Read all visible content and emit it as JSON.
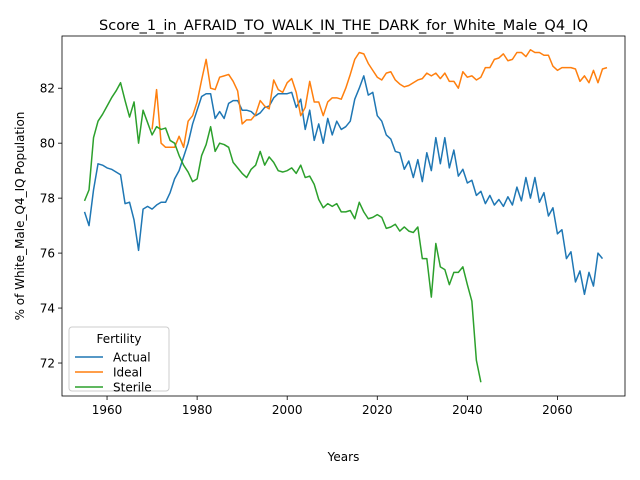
{
  "chart_data": {
    "type": "line",
    "title": "Score_1_in_AFRAID_TO_WALK_IN_THE_DARK_for_White_Male_Q4_IQ",
    "xlabel": "Years",
    "ylabel": "% of White_Male_Q4_IQ Population",
    "xlim": [
      1950,
      2075
    ],
    "ylim": [
      70.8,
      83.9
    ],
    "xticks": [
      1960,
      1980,
      2000,
      2020,
      2040,
      2060
    ],
    "yticks": [
      72,
      74,
      76,
      78,
      80,
      82
    ],
    "grid": false,
    "legend": {
      "title": "Fertility",
      "location": "lower-left"
    },
    "series": [
      {
        "name": "Actual",
        "color": "#1f77b4",
        "points": [
          [
            1955,
            77.5
          ],
          [
            1956,
            77.0
          ],
          [
            1957,
            78.3
          ],
          [
            1958,
            79.25
          ],
          [
            1959,
            79.2
          ],
          [
            1960,
            79.1
          ],
          [
            1961,
            79.05
          ],
          [
            1962,
            78.95
          ],
          [
            1963,
            78.85
          ],
          [
            1964,
            77.8
          ],
          [
            1965,
            77.85
          ],
          [
            1966,
            77.2
          ],
          [
            1967,
            76.1
          ],
          [
            1968,
            77.6
          ],
          [
            1969,
            77.7
          ],
          [
            1970,
            77.6
          ],
          [
            1971,
            77.75
          ],
          [
            1972,
            77.85
          ],
          [
            1973,
            77.85
          ],
          [
            1974,
            78.2
          ],
          [
            1975,
            78.7
          ],
          [
            1976,
            79.0
          ],
          [
            1977,
            79.5
          ],
          [
            1978,
            80.0
          ],
          [
            1979,
            80.7
          ],
          [
            1980,
            81.2
          ],
          [
            1981,
            81.7
          ],
          [
            1982,
            81.8
          ],
          [
            1983,
            81.8
          ],
          [
            1984,
            80.9
          ],
          [
            1985,
            81.15
          ],
          [
            1986,
            80.9
          ],
          [
            1987,
            81.45
          ],
          [
            1988,
            81.55
          ],
          [
            1989,
            81.55
          ],
          [
            1990,
            81.2
          ],
          [
            1991,
            81.2
          ],
          [
            1992,
            81.15
          ],
          [
            1993,
            81.0
          ],
          [
            1994,
            81.1
          ],
          [
            1995,
            81.3
          ],
          [
            1996,
            81.35
          ],
          [
            1997,
            81.65
          ],
          [
            1998,
            81.8
          ],
          [
            1999,
            81.8
          ],
          [
            2000,
            81.8
          ],
          [
            2001,
            81.85
          ],
          [
            2002,
            81.3
          ],
          [
            2003,
            81.6
          ],
          [
            2004,
            80.5
          ],
          [
            2005,
            81.2
          ],
          [
            2006,
            80.1
          ],
          [
            2007,
            80.7
          ],
          [
            2008,
            80.0
          ],
          [
            2009,
            80.9
          ],
          [
            2010,
            80.3
          ],
          [
            2011,
            80.8
          ],
          [
            2012,
            80.5
          ],
          [
            2013,
            80.6
          ],
          [
            2014,
            80.8
          ],
          [
            2015,
            81.6
          ],
          [
            2016,
            82.0
          ],
          [
            2017,
            82.45
          ],
          [
            2018,
            81.75
          ],
          [
            2019,
            81.85
          ],
          [
            2020,
            81.0
          ],
          [
            2021,
            80.8
          ],
          [
            2022,
            80.3
          ],
          [
            2023,
            80.15
          ],
          [
            2024,
            79.7
          ],
          [
            2025,
            79.65
          ],
          [
            2026,
            79.05
          ],
          [
            2027,
            79.35
          ],
          [
            2028,
            78.75
          ],
          [
            2029,
            79.4
          ],
          [
            2030,
            78.6
          ],
          [
            2031,
            79.65
          ],
          [
            2032,
            79.0
          ],
          [
            2033,
            80.2
          ],
          [
            2034,
            79.25
          ],
          [
            2035,
            80.2
          ],
          [
            2036,
            79.1
          ],
          [
            2037,
            79.75
          ],
          [
            2038,
            78.8
          ],
          [
            2039,
            79.05
          ],
          [
            2040,
            78.55
          ],
          [
            2041,
            78.65
          ],
          [
            2042,
            78.1
          ],
          [
            2043,
            78.25
          ],
          [
            2044,
            77.8
          ],
          [
            2045,
            78.1
          ],
          [
            2046,
            77.75
          ],
          [
            2047,
            77.95
          ],
          [
            2048,
            77.7
          ],
          [
            2049,
            78.05
          ],
          [
            2050,
            77.75
          ],
          [
            2051,
            78.4
          ],
          [
            2052,
            77.9
          ],
          [
            2053,
            78.75
          ],
          [
            2054,
            78.0
          ],
          [
            2055,
            78.75
          ],
          [
            2056,
            77.85
          ],
          [
            2057,
            78.2
          ],
          [
            2058,
            77.35
          ],
          [
            2059,
            77.65
          ],
          [
            2060,
            76.7
          ],
          [
            2061,
            76.85
          ],
          [
            2062,
            75.8
          ],
          [
            2063,
            76.05
          ],
          [
            2064,
            74.95
          ],
          [
            2065,
            75.35
          ],
          [
            2066,
            74.5
          ],
          [
            2067,
            75.3
          ],
          [
            2068,
            74.8
          ],
          [
            2069,
            76.0
          ],
          [
            2070,
            75.8
          ]
        ]
      },
      {
        "name": "Ideal",
        "color": "#ff7f0e",
        "points": [
          [
            1970,
            80.5
          ],
          [
            1971,
            81.95
          ],
          [
            1972,
            80.0
          ],
          [
            1973,
            79.85
          ],
          [
            1974,
            79.85
          ],
          [
            1975,
            79.85
          ],
          [
            1976,
            80.25
          ],
          [
            1977,
            79.85
          ],
          [
            1978,
            80.8
          ],
          [
            1979,
            81.0
          ],
          [
            1980,
            81.5
          ],
          [
            1981,
            82.3
          ],
          [
            1982,
            83.05
          ],
          [
            1983,
            82.0
          ],
          [
            1984,
            81.95
          ],
          [
            1985,
            82.4
          ],
          [
            1986,
            82.45
          ],
          [
            1987,
            82.5
          ],
          [
            1988,
            82.25
          ],
          [
            1989,
            81.9
          ],
          [
            1990,
            80.7
          ],
          [
            1991,
            80.85
          ],
          [
            1992,
            80.85
          ],
          [
            1993,
            81.05
          ],
          [
            1994,
            81.55
          ],
          [
            1995,
            81.35
          ],
          [
            1996,
            81.25
          ],
          [
            1997,
            82.3
          ],
          [
            1998,
            81.95
          ],
          [
            1999,
            81.85
          ],
          [
            2000,
            82.2
          ],
          [
            2001,
            82.35
          ],
          [
            2002,
            81.85
          ],
          [
            2003,
            81.0
          ],
          [
            2004,
            81.3
          ],
          [
            2005,
            82.25
          ],
          [
            2006,
            81.5
          ],
          [
            2007,
            81.5
          ],
          [
            2008,
            81.0
          ],
          [
            2009,
            81.5
          ],
          [
            2010,
            81.65
          ],
          [
            2011,
            81.65
          ],
          [
            2012,
            81.6
          ],
          [
            2013,
            82.0
          ],
          [
            2014,
            82.5
          ],
          [
            2015,
            83.05
          ],
          [
            2016,
            83.3
          ],
          [
            2017,
            83.25
          ],
          [
            2018,
            82.9
          ],
          [
            2019,
            82.65
          ],
          [
            2020,
            82.4
          ],
          [
            2021,
            82.3
          ],
          [
            2022,
            82.55
          ],
          [
            2023,
            82.6
          ],
          [
            2024,
            82.3
          ],
          [
            2025,
            82.15
          ],
          [
            2026,
            82.05
          ],
          [
            2027,
            82.1
          ],
          [
            2028,
            82.2
          ],
          [
            2029,
            82.3
          ],
          [
            2030,
            82.35
          ],
          [
            2031,
            82.55
          ],
          [
            2032,
            82.45
          ],
          [
            2033,
            82.55
          ],
          [
            2034,
            82.35
          ],
          [
            2035,
            82.55
          ],
          [
            2036,
            82.25
          ],
          [
            2037,
            82.25
          ],
          [
            2038,
            82.0
          ],
          [
            2039,
            82.6
          ],
          [
            2040,
            82.4
          ],
          [
            2041,
            82.45
          ],
          [
            2042,
            82.3
          ],
          [
            2043,
            82.4
          ],
          [
            2044,
            82.75
          ],
          [
            2045,
            82.75
          ],
          [
            2046,
            83.05
          ],
          [
            2047,
            83.1
          ],
          [
            2048,
            83.25
          ],
          [
            2049,
            83.0
          ],
          [
            2050,
            83.05
          ],
          [
            2051,
            83.3
          ],
          [
            2052,
            83.3
          ],
          [
            2053,
            83.15
          ],
          [
            2054,
            83.4
          ],
          [
            2055,
            83.3
          ],
          [
            2056,
            83.3
          ],
          [
            2057,
            83.2
          ],
          [
            2058,
            83.2
          ],
          [
            2059,
            82.8
          ],
          [
            2060,
            82.65
          ],
          [
            2061,
            82.75
          ],
          [
            2062,
            82.75
          ],
          [
            2063,
            82.75
          ],
          [
            2064,
            82.7
          ],
          [
            2065,
            82.25
          ],
          [
            2066,
            82.45
          ],
          [
            2067,
            82.2
          ],
          [
            2068,
            82.65
          ],
          [
            2069,
            82.2
          ],
          [
            2070,
            82.7
          ],
          [
            2071,
            82.75
          ]
        ]
      },
      {
        "name": "Sterile",
        "color": "#2ca02c",
        "points": [
          [
            1955,
            77.9
          ],
          [
            1956,
            78.3
          ],
          [
            1957,
            80.2
          ],
          [
            1958,
            80.8
          ],
          [
            1959,
            81.05
          ],
          [
            1960,
            81.35
          ],
          [
            1961,
            81.65
          ],
          [
            1962,
            81.9
          ],
          [
            1963,
            82.2
          ],
          [
            1964,
            81.55
          ],
          [
            1965,
            80.95
          ],
          [
            1966,
            81.5
          ],
          [
            1967,
            80.0
          ],
          [
            1968,
            81.2
          ],
          [
            1969,
            80.75
          ],
          [
            1970,
            80.3
          ],
          [
            1971,
            80.6
          ],
          [
            1972,
            80.5
          ],
          [
            1973,
            80.55
          ],
          [
            1974,
            80.1
          ],
          [
            1975,
            80.0
          ],
          [
            1976,
            79.55
          ],
          [
            1977,
            79.2
          ],
          [
            1978,
            78.95
          ],
          [
            1979,
            78.6
          ],
          [
            1980,
            78.7
          ],
          [
            1981,
            79.55
          ],
          [
            1982,
            79.95
          ],
          [
            1983,
            80.6
          ],
          [
            1984,
            79.7
          ],
          [
            1985,
            80.0
          ],
          [
            1986,
            79.95
          ],
          [
            1987,
            79.85
          ],
          [
            1988,
            79.3
          ],
          [
            1989,
            79.1
          ],
          [
            1990,
            78.9
          ],
          [
            1991,
            78.75
          ],
          [
            1992,
            79.05
          ],
          [
            1993,
            79.2
          ],
          [
            1994,
            79.7
          ],
          [
            1995,
            79.2
          ],
          [
            1996,
            79.5
          ],
          [
            1997,
            79.3
          ],
          [
            1998,
            79.0
          ],
          [
            1999,
            78.95
          ],
          [
            2000,
            79.0
          ],
          [
            2001,
            79.1
          ],
          [
            2002,
            78.9
          ],
          [
            2003,
            79.2
          ],
          [
            2004,
            78.75
          ],
          [
            2005,
            78.8
          ],
          [
            2006,
            78.5
          ],
          [
            2007,
            77.95
          ],
          [
            2008,
            77.65
          ],
          [
            2009,
            77.8
          ],
          [
            2010,
            77.7
          ],
          [
            2011,
            77.8
          ],
          [
            2012,
            77.5
          ],
          [
            2013,
            77.5
          ],
          [
            2014,
            77.55
          ],
          [
            2015,
            77.25
          ],
          [
            2016,
            77.85
          ],
          [
            2017,
            77.5
          ],
          [
            2018,
            77.25
          ],
          [
            2019,
            77.3
          ],
          [
            2020,
            77.4
          ],
          [
            2021,
            77.3
          ],
          [
            2022,
            76.9
          ],
          [
            2023,
            76.95
          ],
          [
            2024,
            77.05
          ],
          [
            2025,
            76.8
          ],
          [
            2026,
            76.95
          ],
          [
            2027,
            76.8
          ],
          [
            2028,
            76.75
          ],
          [
            2029,
            76.95
          ],
          [
            2030,
            75.8
          ],
          [
            2031,
            75.8
          ],
          [
            2032,
            74.4
          ],
          [
            2033,
            76.35
          ],
          [
            2034,
            75.5
          ],
          [
            2035,
            75.4
          ],
          [
            2036,
            74.85
          ],
          [
            2037,
            75.3
          ],
          [
            2038,
            75.3
          ],
          [
            2039,
            75.5
          ],
          [
            2040,
            74.85
          ],
          [
            2041,
            74.25
          ],
          [
            2042,
            72.1
          ],
          [
            2043,
            71.3
          ]
        ]
      }
    ]
  }
}
